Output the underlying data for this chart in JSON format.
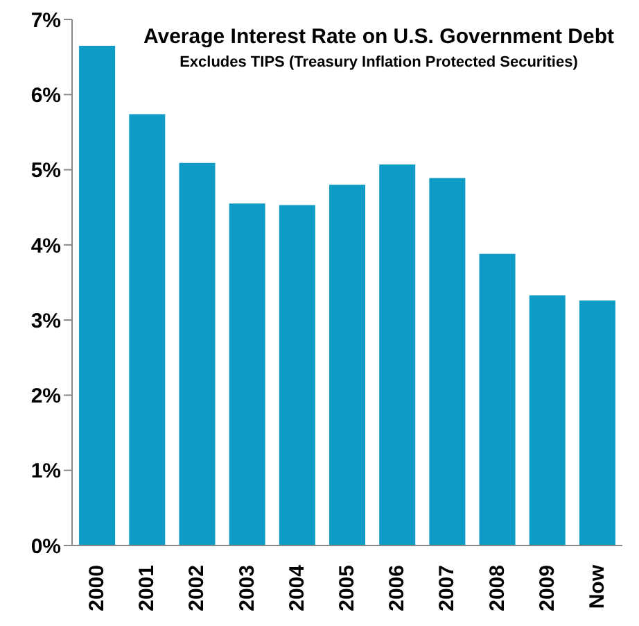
{
  "chart_data": {
    "type": "bar",
    "title": "Average Interest Rate on U.S. Government Debt",
    "subtitle": "Excludes TIPS (Treasury Inflation Protected Securities)",
    "categories": [
      "2000",
      "2001",
      "2002",
      "2003",
      "2004",
      "2005",
      "2006",
      "2007",
      "2008",
      "2009",
      "Now"
    ],
    "values": [
      6.65,
      5.74,
      5.09,
      4.55,
      4.53,
      4.8,
      5.07,
      4.89,
      3.88,
      3.33,
      3.26
    ],
    "color": "#0e9cc6",
    "ylim": [
      0,
      7
    ],
    "yticks": [
      {
        "value": 0,
        "label": "0%"
      },
      {
        "value": 1,
        "label": "1%"
      },
      {
        "value": 2,
        "label": "2%"
      },
      {
        "value": 3,
        "label": "3%"
      },
      {
        "value": 4,
        "label": "4%"
      },
      {
        "value": 5,
        "label": "5%"
      },
      {
        "value": 6,
        "label": "6%"
      },
      {
        "value": 7,
        "label": "7%"
      }
    ],
    "grid": false,
    "legend": false
  }
}
